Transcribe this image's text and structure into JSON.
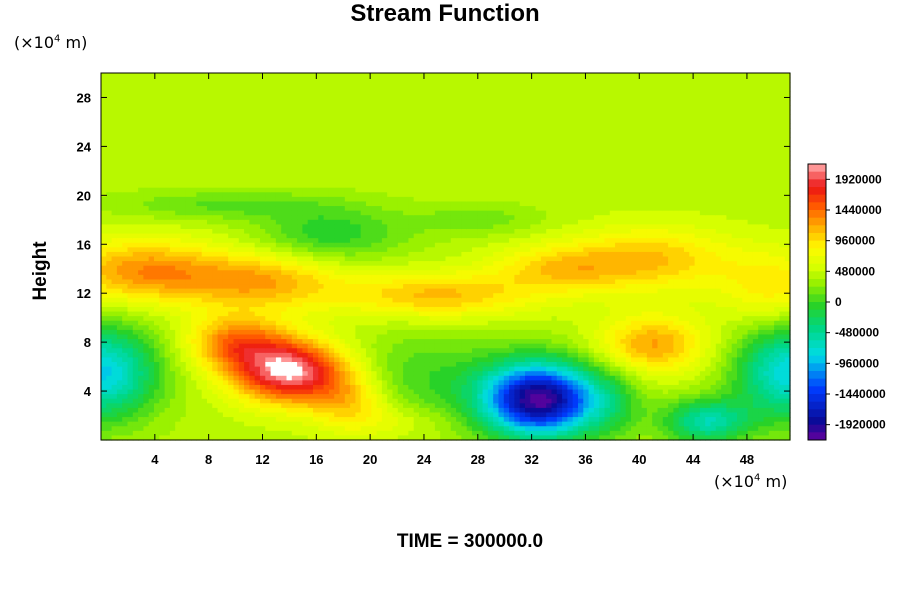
{
  "chart_data": {
    "type": "heatmap",
    "title": "Stream Function",
    "ylabel": "Height",
    "y_unit_prefix": "(×10",
    "y_unit_exp": "4",
    "y_unit_suffix": " m)",
    "x_unit_prefix": "(×10",
    "x_unit_exp": "4",
    "x_unit_suffix": " m)",
    "footer": "TIME = 300000.0",
    "xlim": [
      0,
      51.2
    ],
    "ylim": [
      0,
      30
    ],
    "x_ticks": [
      "4",
      "8",
      "12",
      "16",
      "20",
      "24",
      "28",
      "32",
      "36",
      "40",
      "44",
      "48"
    ],
    "y_ticks": [
      "4",
      "8",
      "12",
      "16",
      "20",
      "24",
      "28"
    ],
    "colorbar": {
      "range": [
        -2160000,
        2160000
      ],
      "labels": [
        "1920000",
        "1440000",
        "960000",
        "480000",
        "0",
        "-480000",
        "-960000",
        "-1440000",
        "-1920000"
      ],
      "above_max_color": "#ffffff"
    },
    "background_value": 480000,
    "features": [
      {
        "name": "positive-maximum",
        "x": 14,
        "y": 5.5,
        "value": 2300000
      },
      {
        "name": "negative-minimum",
        "x": 32.5,
        "y": 3.2,
        "value": -2000000
      },
      {
        "name": "upper-ridge-left",
        "x": 3,
        "y": 13.5,
        "value": 1440000
      },
      {
        "name": "upper-ridge-right",
        "x": 42,
        "y": 14.5,
        "value": 1300000
      },
      {
        "name": "mid-ridge",
        "x": 25,
        "y": 11.8,
        "value": 1200000
      },
      {
        "name": "right-lobe",
        "x": 41,
        "y": 7.5,
        "value": 1300000
      },
      {
        "name": "upper-trough",
        "x": 17,
        "y": 16.5,
        "value": 0
      },
      {
        "name": "left-edge-low",
        "x": 0,
        "y": 5.5,
        "value": -900000
      },
      {
        "name": "right-edge-low",
        "x": 51.2,
        "y": 5.5,
        "value": -800000
      },
      {
        "name": "bottom-right-low",
        "x": 45,
        "y": 1.5,
        "value": -700000
      }
    ]
  }
}
